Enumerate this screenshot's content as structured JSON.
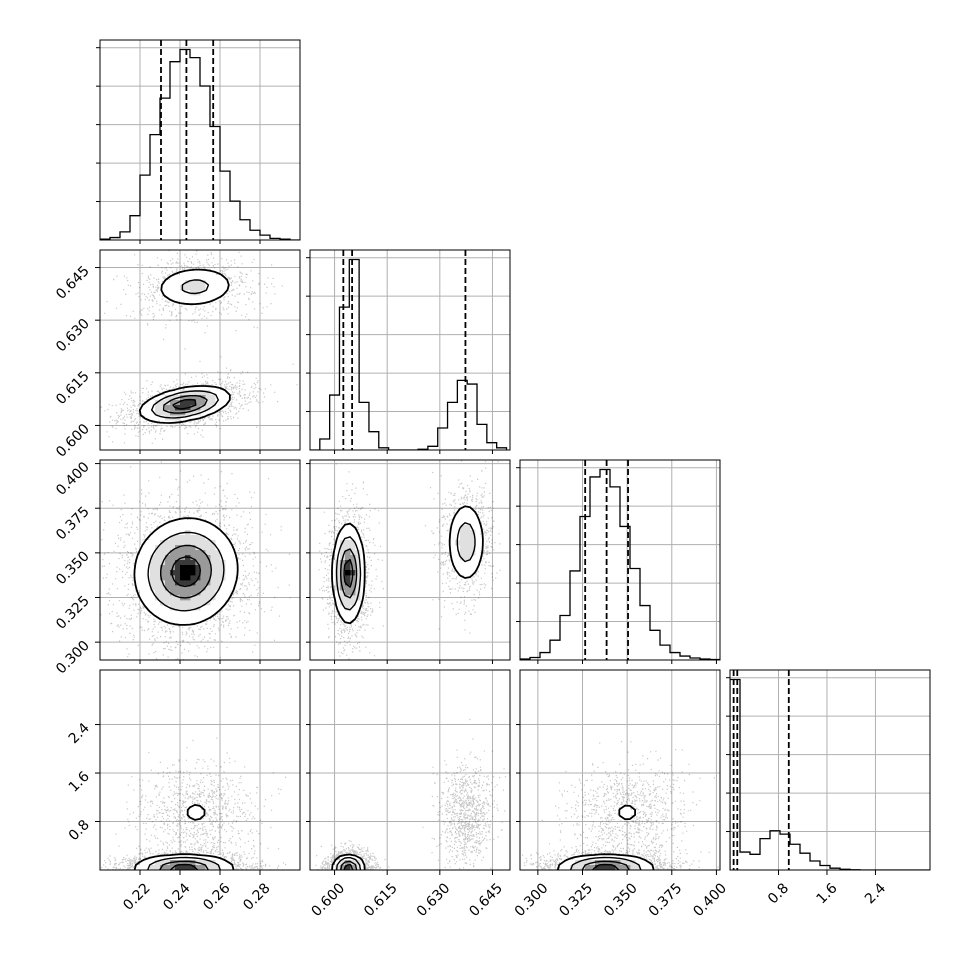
{
  "chart_data": {
    "type": "corner",
    "grid": true,
    "parameters": [
      {
        "range": [
          0.2,
          0.3
        ],
        "ticks": [
          0.22,
          0.24,
          0.26,
          0.28
        ],
        "tick_labels": [
          "0.22",
          "0.24",
          "0.26",
          "0.28"
        ]
      },
      {
        "range": [
          0.593,
          0.65
        ],
        "ticks": [
          0.6,
          0.615,
          0.63,
          0.645
        ],
        "tick_labels": [
          "0.600",
          "0.615",
          "0.630",
          "0.645"
        ]
      },
      {
        "range": [
          0.29,
          0.402
        ],
        "ticks": [
          0.3,
          0.325,
          0.35,
          0.375,
          0.4
        ],
        "tick_labels": [
          "0.300",
          "0.325",
          "0.350",
          "0.375",
          "0.400"
        ]
      },
      {
        "range": [
          0.0,
          3.3
        ],
        "ticks": [
          0.8,
          1.6,
          2.4
        ],
        "tick_labels": [
          "0.8",
          "1.6",
          "2.4"
        ]
      }
    ],
    "histograms": [
      {
        "bin_edges": [
          0.2,
          0.205,
          0.21,
          0.215,
          0.22,
          0.225,
          0.23,
          0.235,
          0.24,
          0.245,
          0.25,
          0.255,
          0.26,
          0.265,
          0.27,
          0.275,
          0.28,
          0.285,
          0.29,
          0.295,
          0.3
        ],
        "counts": [
          1,
          3,
          10,
          30,
          80,
          130,
          175,
          220,
          235,
          225,
          190,
          140,
          85,
          48,
          25,
          12,
          6,
          2,
          1,
          0
        ],
        "quantiles": [
          0.2305,
          0.2432,
          0.2566
        ]
      },
      {
        "bin_edges": [
          0.593,
          0.5958,
          0.5986,
          0.6014,
          0.6042,
          0.607,
          0.6098,
          0.6126,
          0.6154,
          0.6182,
          0.621,
          0.6238,
          0.6266,
          0.6294,
          0.6322,
          0.635,
          0.6378,
          0.6406,
          0.6434,
          0.6462,
          0.649
        ],
        "counts": [
          0,
          15,
          75,
          195,
          260,
          65,
          25,
          3,
          0,
          0,
          0,
          1,
          5,
          30,
          65,
          95,
          90,
          35,
          10,
          3
        ],
        "quantiles": [
          0.6025,
          0.605,
          0.6373
        ]
      },
      {
        "bin_edges": [
          0.29,
          0.2956,
          0.3012,
          0.3068,
          0.3124,
          0.318,
          0.3236,
          0.3292,
          0.3348,
          0.3404,
          0.346,
          0.3516,
          0.3572,
          0.3628,
          0.3684,
          0.374,
          0.3796,
          0.3852,
          0.3908,
          0.3964,
          0.402
        ],
        "counts": [
          2,
          5,
          15,
          40,
          90,
          180,
          290,
          370,
          385,
          350,
          270,
          185,
          110,
          60,
          30,
          15,
          8,
          4,
          2,
          1
        ],
        "quantiles": [
          0.3265,
          0.3385,
          0.3505
        ]
      },
      {
        "bin_edges": [
          0.0,
          0.165,
          0.33,
          0.495,
          0.66,
          0.825,
          0.99,
          1.155,
          1.32,
          1.485,
          1.65,
          1.815,
          1.98,
          2.145,
          2.31,
          2.475,
          2.64,
          2.805,
          2.97,
          3.135,
          3.3
        ],
        "counts": [
          850,
          80,
          70,
          140,
          175,
          160,
          115,
          75,
          40,
          20,
          8,
          3,
          1,
          0,
          0,
          0,
          0,
          0,
          0,
          0
        ],
        "quantiles": [
          0.06,
          0.12,
          0.97
        ]
      }
    ],
    "joint_modes": [
      {
        "x_param": 0,
        "y_param": 1,
        "clusters": [
          {
            "cx": 0.2475,
            "cy": 0.6395,
            "sx": 0.011,
            "sy": 0.0032,
            "rho": 0.1,
            "weight": 0.35
          },
          {
            "cx": 0.2425,
            "cy": 0.606,
            "sx": 0.011,
            "sy": 0.0025,
            "rho": 0.4,
            "weight": 0.65
          }
        ]
      },
      {
        "x_param": 0,
        "y_param": 2,
        "clusters": [
          {
            "cx": 0.243,
            "cy": 0.3395,
            "sx": 0.0125,
            "sy": 0.0145,
            "rho": 0.05,
            "weight": 1.0
          }
        ]
      },
      {
        "x_param": 1,
        "y_param": 2,
        "clusters": [
          {
            "cx": 0.604,
            "cy": 0.3385,
            "sx": 0.0022,
            "sy": 0.0135,
            "rho": 0.0,
            "weight": 0.65
          },
          {
            "cx": 0.6375,
            "cy": 0.356,
            "sx": 0.0028,
            "sy": 0.012,
            "rho": 0.0,
            "weight": 0.35
          }
        ]
      },
      {
        "x_param": 0,
        "y_param": 3,
        "clusters": [
          {
            "cx": 0.248,
            "cy": 0.95,
            "sx": 0.011,
            "sy": 0.3,
            "rho": 0.0,
            "weight": 0.35
          },
          {
            "cx": 0.242,
            "cy": 0.08,
            "sx": 0.012,
            "sy": 0.09,
            "rho": 0.0,
            "weight": 0.65
          }
        ]
      },
      {
        "x_param": 1,
        "y_param": 3,
        "clusters": [
          {
            "cx": 0.6375,
            "cy": 0.95,
            "sx": 0.0028,
            "sy": 0.3,
            "rho": 0.0,
            "weight": 0.35
          },
          {
            "cx": 0.604,
            "cy": 0.08,
            "sx": 0.0022,
            "sy": 0.09,
            "rho": 0.0,
            "weight": 0.65
          }
        ]
      },
      {
        "x_param": 2,
        "y_param": 3,
        "clusters": [
          {
            "cx": 0.35,
            "cy": 0.95,
            "sx": 0.012,
            "sy": 0.3,
            "rho": 0.0,
            "weight": 0.35
          },
          {
            "cx": 0.338,
            "cy": 0.08,
            "sx": 0.013,
            "sy": 0.09,
            "rho": 0.0,
            "weight": 0.65
          }
        ]
      }
    ]
  },
  "colors": {
    "hist_line": "#000000",
    "quantile_line": "#000000",
    "contour_line": "#000000",
    "grid": "#b0b0b0",
    "points": "#000000"
  }
}
